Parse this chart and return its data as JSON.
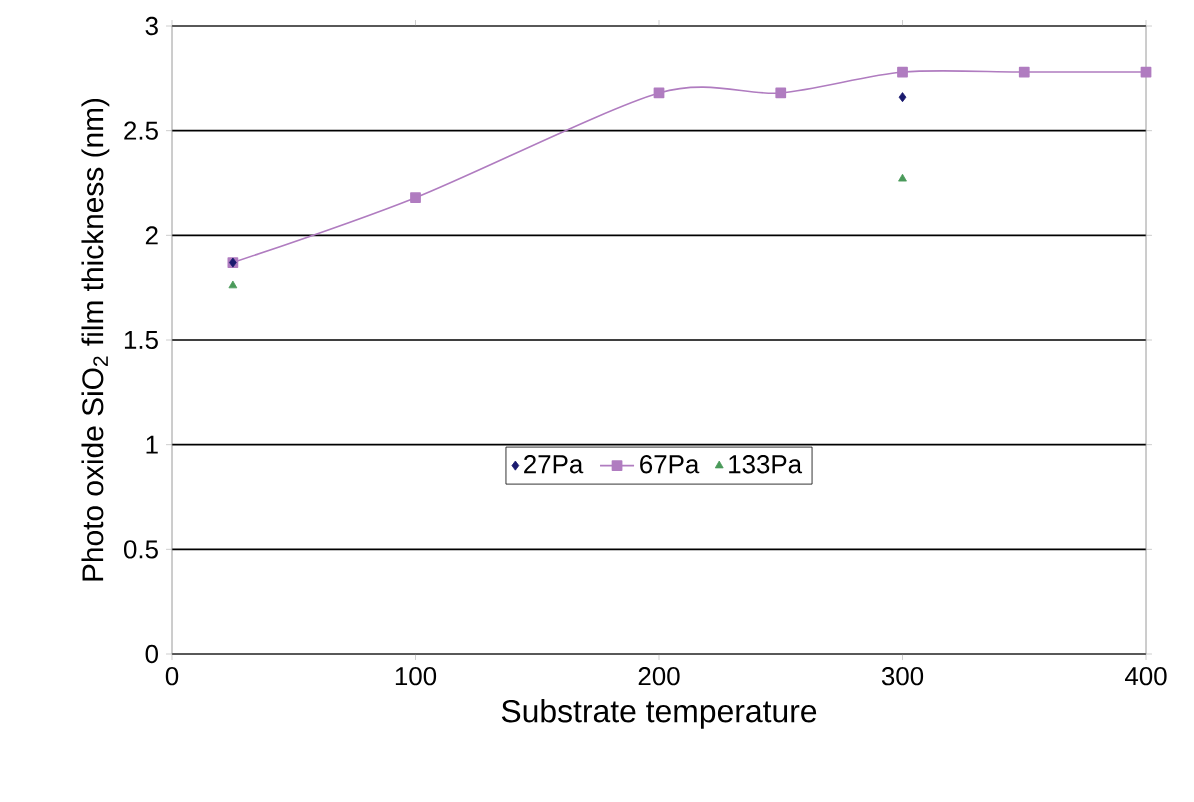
{
  "chart_data": {
    "type": "line",
    "xlabel": "Substrate temperature",
    "ylabel": "Photo oxide SiO$_{2}$ film thickness (nm)",
    "xlim": [
      0,
      400
    ],
    "ylim": [
      0,
      3
    ],
    "xticks": [
      0,
      100,
      200,
      300,
      400
    ],
    "yticks": [
      0,
      0.5,
      1,
      1.5,
      2,
      2.5,
      3
    ],
    "grid": "y",
    "legend": "center",
    "series": [
      {
        "name": "27Pa",
        "type": "scatter",
        "color": "#1a1a6e",
        "marker": "diamond",
        "x": [
          25,
          300
        ],
        "values": [
          1.87,
          2.66
        ]
      },
      {
        "name": "67Pa",
        "color": "#b07cc0",
        "marker": "square",
        "x": [
          25,
          100,
          200,
          250,
          300,
          350,
          400
        ],
        "values": [
          1.87,
          2.18,
          2.68,
          2.68,
          2.78,
          2.78,
          2.78
        ]
      },
      {
        "name": "133Pa",
        "type": "scatter",
        "color": "#4a9a5a",
        "marker": "triangle",
        "x": [
          25,
          300
        ],
        "values": [
          1.76,
          2.27
        ]
      }
    ]
  }
}
